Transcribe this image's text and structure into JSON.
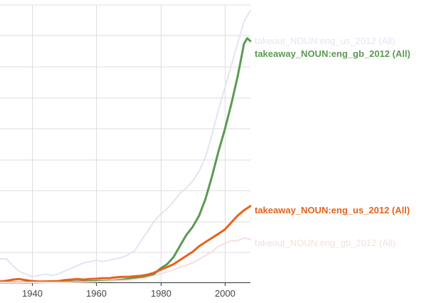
{
  "chart_data": {
    "type": "line",
    "title": "",
    "xlabel": "",
    "ylabel": "",
    "x_ticks": [
      "1940",
      "1960",
      "1980",
      "2000"
    ],
    "xlim": [
      1930,
      2008
    ],
    "ylim": [
      0,
      1
    ],
    "grid": true,
    "legend": "inline-right",
    "series": [
      {
        "name": "takeout_NOUN:eng_us_2012 (All)",
        "color": "#e4e3f4",
        "emphasis": false,
        "points": [
          [
            1930,
            0.085
          ],
          [
            1932,
            0.085
          ],
          [
            1934,
            0.06
          ],
          [
            1936,
            0.04
          ],
          [
            1938,
            0.03
          ],
          [
            1940,
            0.02
          ],
          [
            1942,
            0.025
          ],
          [
            1944,
            0.03
          ],
          [
            1946,
            0.025
          ],
          [
            1948,
            0.03
          ],
          [
            1950,
            0.04
          ],
          [
            1952,
            0.05
          ],
          [
            1954,
            0.06
          ],
          [
            1956,
            0.07
          ],
          [
            1958,
            0.075
          ],
          [
            1960,
            0.08
          ],
          [
            1962,
            0.075
          ],
          [
            1964,
            0.08
          ],
          [
            1966,
            0.085
          ],
          [
            1968,
            0.09
          ],
          [
            1970,
            0.1
          ],
          [
            1972,
            0.115
          ],
          [
            1974,
            0.15
          ],
          [
            1976,
            0.185
          ],
          [
            1978,
            0.22
          ],
          [
            1980,
            0.245
          ],
          [
            1982,
            0.265
          ],
          [
            1984,
            0.29
          ],
          [
            1986,
            0.32
          ],
          [
            1988,
            0.34
          ],
          [
            1990,
            0.365
          ],
          [
            1992,
            0.4
          ],
          [
            1994,
            0.45
          ],
          [
            1996,
            0.53
          ],
          [
            1998,
            0.62
          ],
          [
            2000,
            0.7
          ],
          [
            2002,
            0.78
          ],
          [
            2004,
            0.86
          ],
          [
            2006,
            0.94
          ],
          [
            2008,
            0.98
          ]
        ]
      },
      {
        "name": "takeaway_NOUN:eng_gb_2012 (All)",
        "color": "#5b9a52",
        "emphasis": true,
        "points": [
          [
            1930,
            0.0
          ],
          [
            1940,
            0.0
          ],
          [
            1950,
            0.002
          ],
          [
            1960,
            0.004
          ],
          [
            1965,
            0.006
          ],
          [
            1970,
            0.012
          ],
          [
            1975,
            0.02
          ],
          [
            1978,
            0.03
          ],
          [
            1980,
            0.05
          ],
          [
            1982,
            0.065
          ],
          [
            1984,
            0.09
          ],
          [
            1986,
            0.13
          ],
          [
            1988,
            0.17
          ],
          [
            1990,
            0.2
          ],
          [
            1992,
            0.24
          ],
          [
            1994,
            0.3
          ],
          [
            1996,
            0.38
          ],
          [
            1998,
            0.47
          ],
          [
            2000,
            0.55
          ],
          [
            2002,
            0.64
          ],
          [
            2004,
            0.74
          ],
          [
            2005,
            0.8
          ],
          [
            2006,
            0.86
          ],
          [
            2007,
            0.88
          ],
          [
            2008,
            0.87
          ]
        ]
      },
      {
        "name": "takeaway_NOUN:eng_us_2012 (All)",
        "color": "#e8611a",
        "emphasis": true,
        "points": [
          [
            1930,
            0.003
          ],
          [
            1932,
            0.006
          ],
          [
            1934,
            0.01
          ],
          [
            1936,
            0.012
          ],
          [
            1938,
            0.008
          ],
          [
            1940,
            0.005
          ],
          [
            1942,
            0.003
          ],
          [
            1944,
            0.003
          ],
          [
            1946,
            0.004
          ],
          [
            1948,
            0.004
          ],
          [
            1950,
            0.008
          ],
          [
            1952,
            0.01
          ],
          [
            1954,
            0.012
          ],
          [
            1956,
            0.01
          ],
          [
            1958,
            0.012
          ],
          [
            1960,
            0.013
          ],
          [
            1962,
            0.015
          ],
          [
            1964,
            0.015
          ],
          [
            1966,
            0.018
          ],
          [
            1968,
            0.02
          ],
          [
            1970,
            0.02
          ],
          [
            1972,
            0.022
          ],
          [
            1974,
            0.024
          ],
          [
            1976,
            0.028
          ],
          [
            1978,
            0.035
          ],
          [
            1980,
            0.045
          ],
          [
            1982,
            0.055
          ],
          [
            1984,
            0.065
          ],
          [
            1986,
            0.08
          ],
          [
            1988,
            0.095
          ],
          [
            1990,
            0.11
          ],
          [
            1992,
            0.13
          ],
          [
            1994,
            0.145
          ],
          [
            1996,
            0.16
          ],
          [
            1998,
            0.175
          ],
          [
            2000,
            0.19
          ],
          [
            2002,
            0.215
          ],
          [
            2004,
            0.24
          ],
          [
            2006,
            0.26
          ],
          [
            2008,
            0.275
          ]
        ]
      },
      {
        "name": "takeout_NOUN:eng_gb_2012 (All)",
        "color": "#f6dfdb",
        "emphasis": false,
        "points": [
          [
            1930,
            0.0
          ],
          [
            1940,
            0.0
          ],
          [
            1950,
            0.0
          ],
          [
            1960,
            0.002
          ],
          [
            1970,
            0.008
          ],
          [
            1975,
            0.015
          ],
          [
            1980,
            0.03
          ],
          [
            1985,
            0.05
          ],
          [
            1990,
            0.07
          ],
          [
            1993,
            0.09
          ],
          [
            1996,
            0.11
          ],
          [
            1998,
            0.13
          ],
          [
            2000,
            0.14
          ],
          [
            2002,
            0.15
          ],
          [
            2004,
            0.15
          ],
          [
            2006,
            0.16
          ],
          [
            2008,
            0.155
          ]
        ]
      }
    ]
  }
}
